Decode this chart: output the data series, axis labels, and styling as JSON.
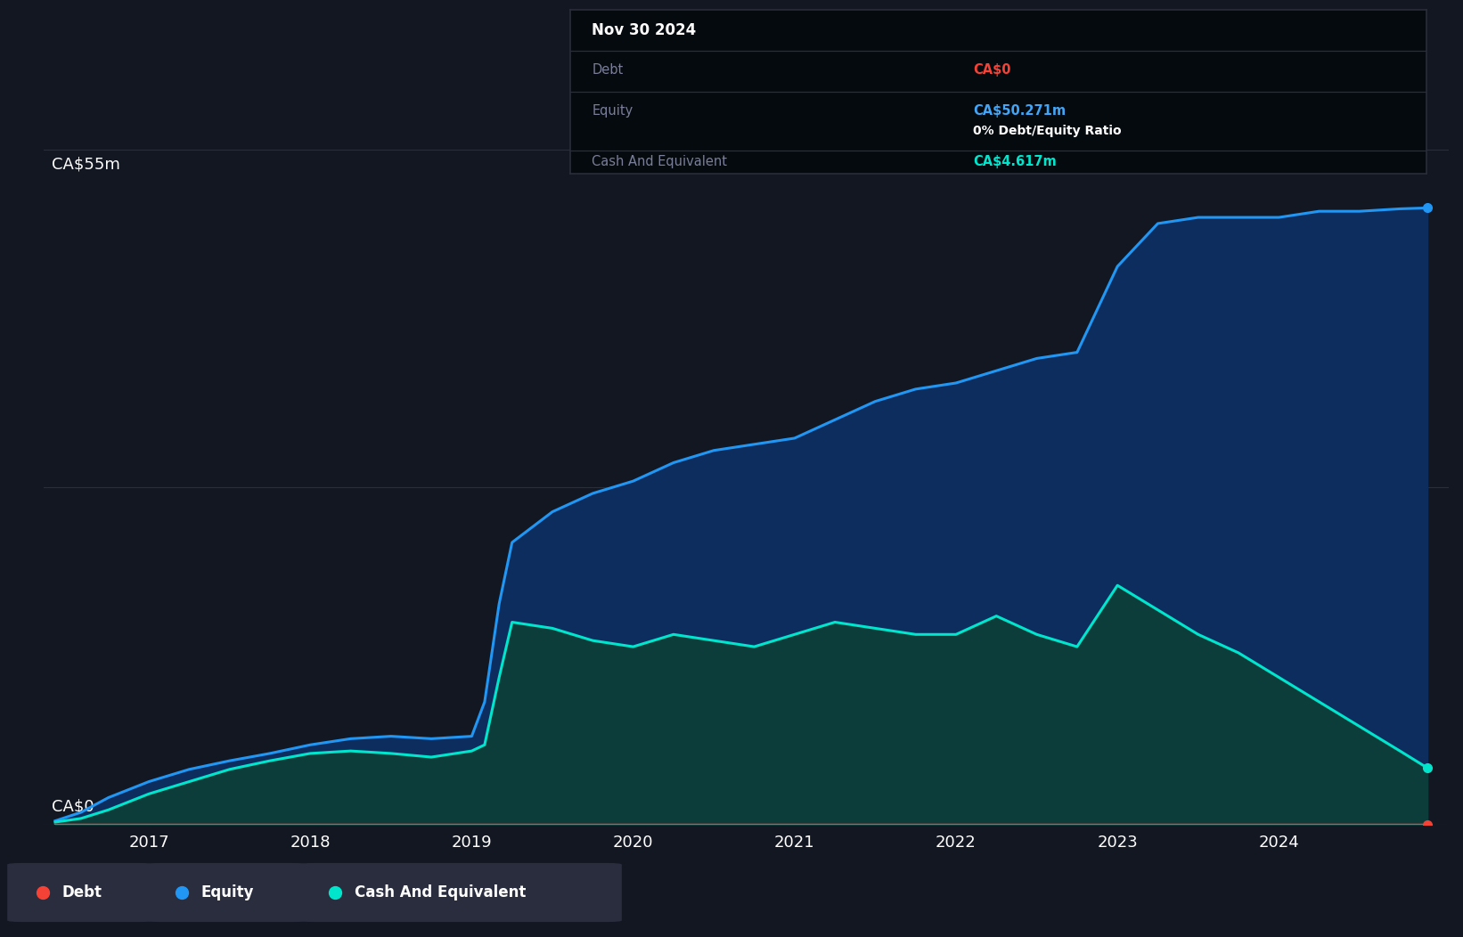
{
  "background_color": "#131722",
  "plot_bg_color": "#131722",
  "ylabel_top": "CA$55m",
  "ylabel_bottom": "CA$0",
  "x_years": [
    2016.42,
    2016.58,
    2016.75,
    2017.0,
    2017.25,
    2017.5,
    2017.75,
    2018.0,
    2018.25,
    2018.5,
    2018.75,
    2019.0,
    2019.08,
    2019.17,
    2019.25,
    2019.5,
    2019.75,
    2020.0,
    2020.25,
    2020.5,
    2020.75,
    2021.0,
    2021.25,
    2021.5,
    2021.75,
    2022.0,
    2022.25,
    2022.5,
    2022.75,
    2023.0,
    2023.25,
    2023.5,
    2023.75,
    2024.0,
    2024.25,
    2024.5,
    2024.75,
    2024.92
  ],
  "equity": [
    0.3,
    1.0,
    2.2,
    3.5,
    4.5,
    5.2,
    5.8,
    6.5,
    7.0,
    7.2,
    7.0,
    7.2,
    10.0,
    18.0,
    23.0,
    25.5,
    27.0,
    28.0,
    29.5,
    30.5,
    31.0,
    31.5,
    33.0,
    34.5,
    35.5,
    36.0,
    37.0,
    38.0,
    38.5,
    45.5,
    49.0,
    49.5,
    49.5,
    49.5,
    50.0,
    50.0,
    50.2,
    50.271
  ],
  "cash": [
    0.2,
    0.5,
    1.2,
    2.5,
    3.5,
    4.5,
    5.2,
    5.8,
    6.0,
    5.8,
    5.5,
    6.0,
    6.5,
    12.0,
    16.5,
    16.0,
    15.0,
    14.5,
    15.5,
    15.0,
    14.5,
    15.5,
    16.5,
    16.0,
    15.5,
    15.5,
    17.0,
    15.5,
    14.5,
    19.5,
    17.5,
    15.5,
    14.0,
    12.0,
    10.0,
    8.0,
    6.0,
    4.617
  ],
  "debt": [
    0.0,
    0.0,
    0.0,
    0.0,
    0.0,
    0.0,
    0.0,
    0.0,
    0.0,
    0.0,
    0.0,
    0.0,
    0.0,
    0.0,
    0.0,
    0.0,
    0.0,
    0.0,
    0.0,
    0.0,
    0.0,
    0.0,
    0.0,
    0.0,
    0.0,
    0.0,
    0.0,
    0.0,
    0.0,
    0.0,
    0.0,
    0.0,
    0.0,
    0.0,
    0.0,
    0.0,
    0.0,
    0.0
  ],
  "equity_color": "#2196f3",
  "cash_color": "#00e5cc",
  "debt_color": "#f44336",
  "equity_fill": "#0d2d5e",
  "cash_fill": "#0d3d3a",
  "grid_color": "#2a2d3a",
  "text_color": "#ffffff",
  "label_color": "#8a8ea8",
  "ylim": [
    0,
    55
  ],
  "xlim_min": 2016.35,
  "xlim_max": 2025.05,
  "x_tick_labels": [
    "2017",
    "2018",
    "2019",
    "2020",
    "2021",
    "2022",
    "2023",
    "2024"
  ],
  "x_tick_positions": [
    2017,
    2018,
    2019,
    2020,
    2021,
    2022,
    2023,
    2024
  ],
  "legend_items": [
    "Debt",
    "Equity",
    "Cash And Equivalent"
  ],
  "legend_colors": [
    "#f44336",
    "#2196f3",
    "#00e5cc"
  ],
  "legend_bg": "#1e2235",
  "legend_item_bg": "#2a2d3e",
  "tooltip_title": "Nov 30 2024",
  "tooltip_debt_label": "Debt",
  "tooltip_debt_value": "CA$0",
  "tooltip_equity_label": "Equity",
  "tooltip_equity_value": "CA$50.271m",
  "tooltip_ratio": "0% Debt/Equity Ratio",
  "tooltip_cash_label": "Cash And Equivalent",
  "tooltip_cash_value": "CA$4.617m",
  "tooltip_bg": "#050a0f",
  "tooltip_border": "#2a2d3a",
  "title_color": "#ffffff",
  "debt_val_color": "#f44336",
  "equity_val_color": "#42a5f5",
  "cash_val_color": "#00e5cc",
  "ratio_white": "#ffffff",
  "label_gray": "#7a7e98"
}
